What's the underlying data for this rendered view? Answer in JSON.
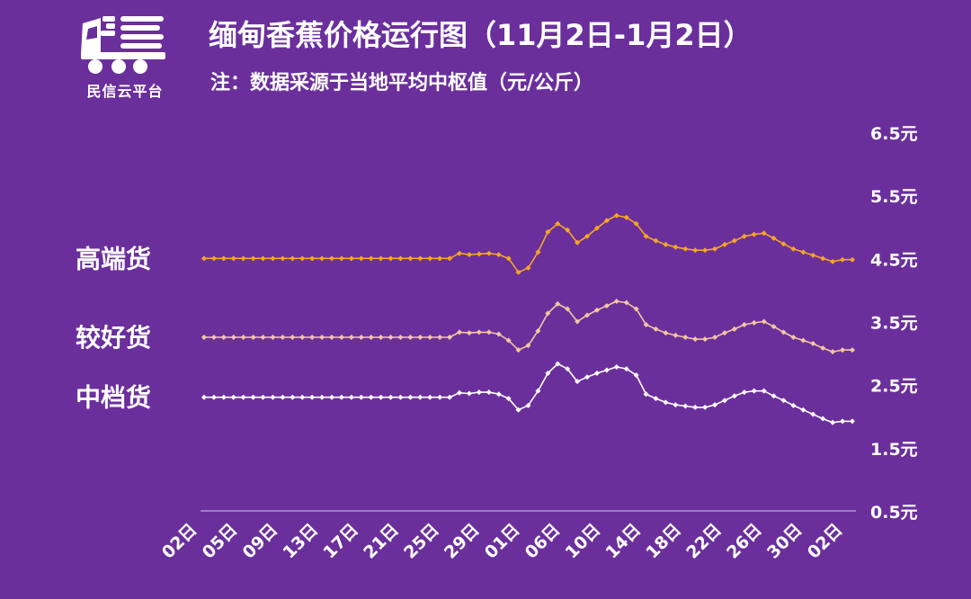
{
  "header": {
    "logo_text": "民信云平台",
    "title": "缅甸香蕉价格运行图（11月2日-1月2日）",
    "note": "注：数据采源于当地平均中枢值（元/公斤）"
  },
  "colors": {
    "background": "#6b2f9c",
    "high": "#f5a623",
    "good": "#f3c7a2",
    "mid": "#ffffff"
  },
  "chart_data": {
    "type": "line",
    "x_labels": [
      "02日",
      "05日",
      "09日",
      "13日",
      "17日",
      "21日",
      "25日",
      "29日",
      "01日",
      "06日",
      "10日",
      "14日",
      "18日",
      "22日",
      "26日",
      "30日",
      "02日"
    ],
    "ylim": [
      0.5,
      6.5
    ],
    "y_ticks": [
      0.5,
      1.5,
      2.5,
      3.5,
      4.5,
      5.5,
      6.5
    ],
    "y_tick_labels": [
      "0.5元",
      "1.5元",
      "2.5元",
      "3.5元",
      "4.5元",
      "5.5元",
      "6.5元"
    ],
    "grid": false,
    "legend": "left, inline labels",
    "series": [
      {
        "name": "高端货",
        "color": "#f5a623",
        "values": [
          4.5,
          4.5,
          4.5,
          4.5,
          4.5,
          4.5,
          4.5,
          4.5,
          4.5,
          4.5,
          4.5,
          4.5,
          4.5,
          4.5,
          4.5,
          4.5,
          4.5,
          4.5,
          4.5,
          4.5,
          4.5,
          4.5,
          4.5,
          4.5,
          4.5,
          4.5,
          4.58,
          4.56,
          4.57,
          4.58,
          4.56,
          4.5,
          4.28,
          4.35,
          4.6,
          4.92,
          5.05,
          4.95,
          4.75,
          4.85,
          4.98,
          5.1,
          5.18,
          5.15,
          5.05,
          4.85,
          4.78,
          4.72,
          4.68,
          4.65,
          4.63,
          4.63,
          4.65,
          4.72,
          4.78,
          4.85,
          4.88,
          4.9,
          4.82,
          4.73,
          4.65,
          4.6,
          4.55,
          4.5,
          4.45,
          4.48,
          4.48
        ]
      },
      {
        "name": "较好货",
        "color": "#f3c7a2",
        "values": [
          3.25,
          3.25,
          3.25,
          3.25,
          3.25,
          3.25,
          3.25,
          3.25,
          3.25,
          3.25,
          3.25,
          3.25,
          3.25,
          3.25,
          3.25,
          3.25,
          3.25,
          3.25,
          3.25,
          3.25,
          3.25,
          3.25,
          3.25,
          3.25,
          3.25,
          3.25,
          3.33,
          3.32,
          3.33,
          3.33,
          3.3,
          3.2,
          3.05,
          3.12,
          3.35,
          3.63,
          3.78,
          3.7,
          3.5,
          3.6,
          3.68,
          3.75,
          3.82,
          3.8,
          3.7,
          3.45,
          3.38,
          3.32,
          3.28,
          3.25,
          3.22,
          3.22,
          3.25,
          3.32,
          3.38,
          3.45,
          3.48,
          3.5,
          3.42,
          3.33,
          3.25,
          3.2,
          3.15,
          3.08,
          3.02,
          3.05,
          3.05
        ]
      },
      {
        "name": "中档货",
        "color": "#ffffff",
        "values": [
          2.3,
          2.3,
          2.3,
          2.3,
          2.3,
          2.3,
          2.3,
          2.3,
          2.3,
          2.3,
          2.3,
          2.3,
          2.3,
          2.3,
          2.3,
          2.3,
          2.3,
          2.3,
          2.3,
          2.3,
          2.3,
          2.3,
          2.3,
          2.3,
          2.3,
          2.3,
          2.37,
          2.36,
          2.38,
          2.38,
          2.35,
          2.28,
          2.1,
          2.17,
          2.4,
          2.68,
          2.83,
          2.75,
          2.55,
          2.62,
          2.68,
          2.73,
          2.78,
          2.75,
          2.65,
          2.35,
          2.28,
          2.22,
          2.18,
          2.16,
          2.14,
          2.14,
          2.18,
          2.25,
          2.32,
          2.38,
          2.4,
          2.4,
          2.32,
          2.25,
          2.17,
          2.1,
          2.03,
          1.96,
          1.9,
          1.92,
          1.92
        ]
      }
    ]
  }
}
